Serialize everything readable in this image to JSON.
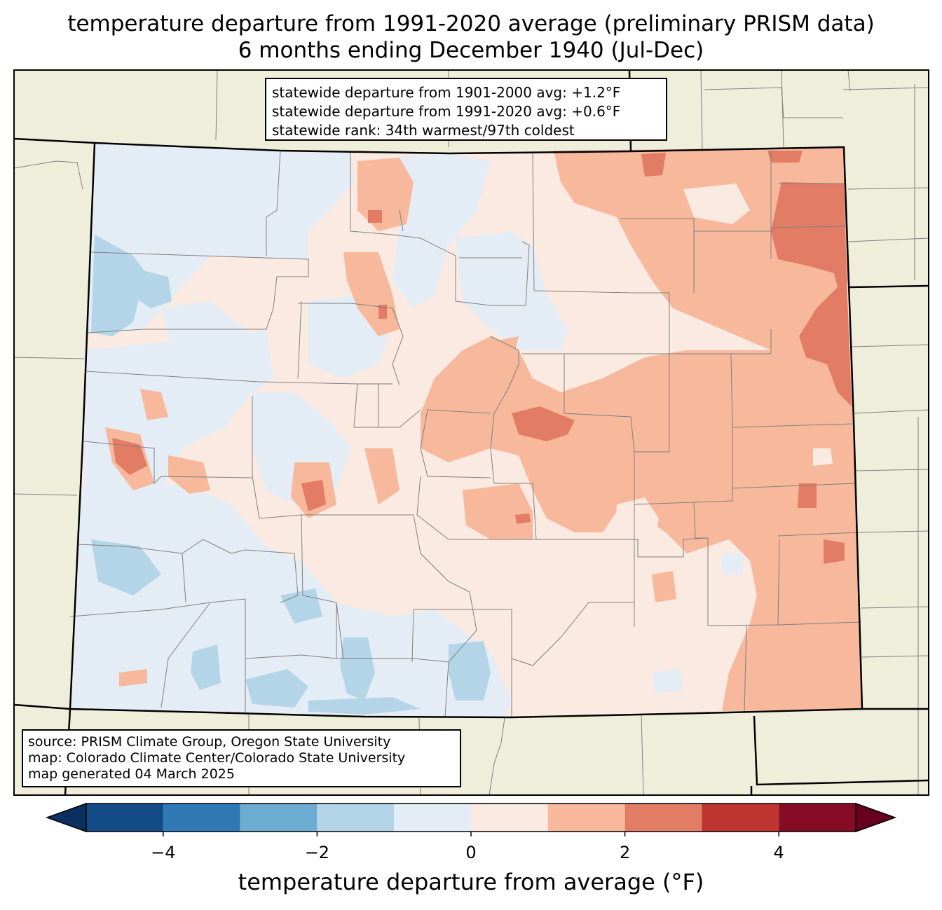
{
  "title_line1": "temperature departure from 1991-2020 average (preliminary PRISM data)",
  "title_line2": "6 months ending December 1940 (Jul-Dec)",
  "stats": {
    "line1": "statewide departure from 1901-2000 avg: +1.2°F",
    "line2": "statewide departure from 1991-2020 avg: +0.6°F",
    "line3": "statewide rank: 34th warmest/97th coldest"
  },
  "source": {
    "line1": "source: PRISM Climate Group, Oregon State University",
    "line2": "map: Colorado Climate Center/Colorado State University",
    "line3": "map generated 04 March 2025"
  },
  "colorbar": {
    "label": "temperature departure from average (°F)",
    "ticks": [
      "−4",
      "−2",
      "0",
      "2",
      "4"
    ],
    "tick_values": [
      -4,
      -2,
      0,
      2,
      4
    ],
    "bins": [
      -5,
      -4,
      -3,
      -2,
      -1,
      0,
      1,
      2,
      3,
      4,
      5
    ],
    "colors": [
      "#134b87",
      "#2f79b5",
      "#6dacd1",
      "#b3d5e7",
      "#e4edf5",
      "#faeae1",
      "#f7b89c",
      "#e27c64",
      "#bd3430",
      "#860b24"
    ],
    "under_color": "#0a3060",
    "over_color": "#67001f"
  },
  "map_colors": {
    "land_outside": "#efeedb",
    "state_border": "#000000",
    "county_border": "#808080"
  }
}
